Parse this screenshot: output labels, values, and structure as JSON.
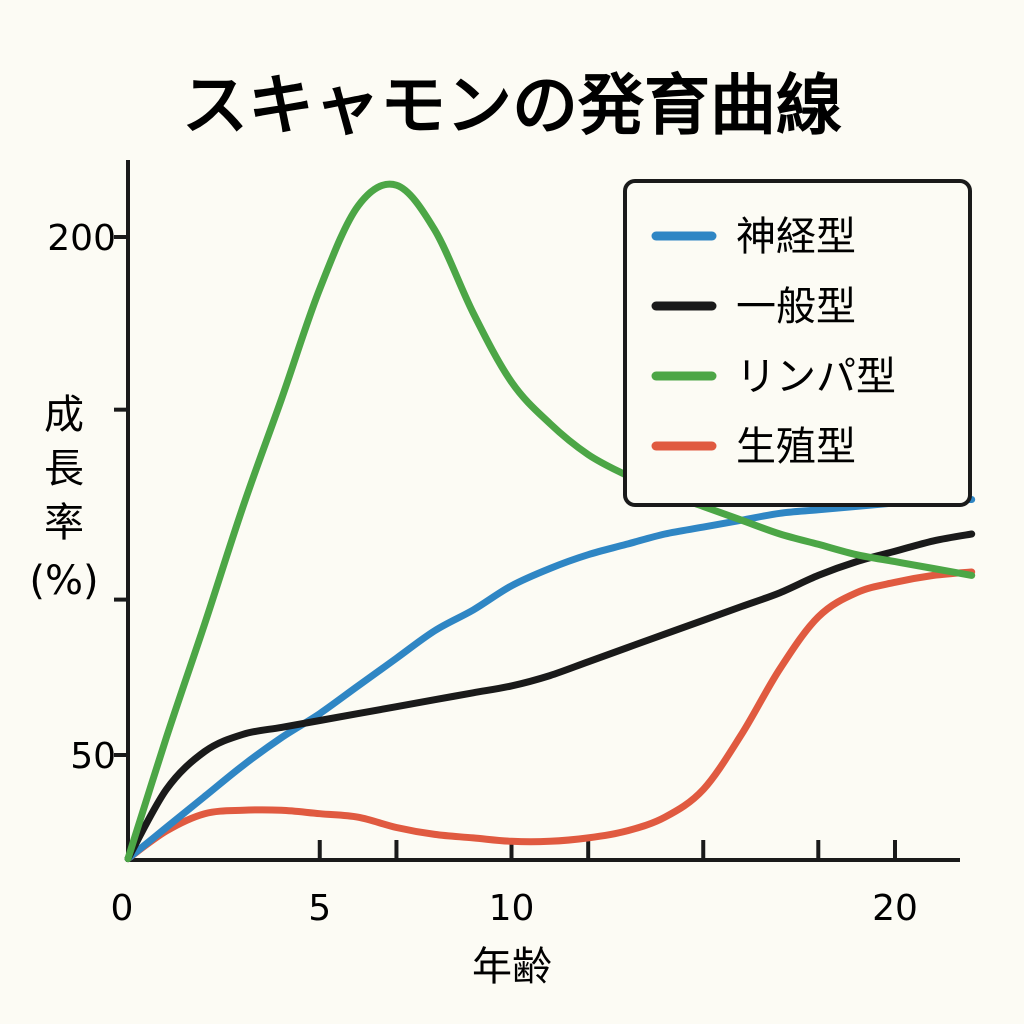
{
  "chart_data": {
    "type": "line",
    "title": "スキャモンの発育曲線",
    "xlabel": "年齢",
    "ylabel_lines": [
      "成",
      "長",
      "率",
      "(%)"
    ],
    "xlim": [
      0,
      22
    ],
    "ylim": [
      17,
      217
    ],
    "x_ticks": [
      0,
      5,
      10,
      20
    ],
    "x_minor_ticks": [
      5,
      7,
      10,
      12,
      15,
      18,
      20
    ],
    "y_ticks": [
      50,
      200
    ],
    "y_minor_ticks": [
      50,
      95,
      150,
      200
    ],
    "legend_position": "top-right",
    "grid": false,
    "series": [
      {
        "name": "神経型",
        "color": "#2f86c4",
        "points": [
          [
            0,
            20
          ],
          [
            1,
            29
          ],
          [
            2,
            38
          ],
          [
            3,
            47
          ],
          [
            4,
            55
          ],
          [
            5,
            62
          ],
          [
            6,
            70
          ],
          [
            7,
            78
          ],
          [
            8,
            86
          ],
          [
            9,
            92
          ],
          [
            10,
            99
          ],
          [
            11,
            104
          ],
          [
            12,
            108
          ],
          [
            13,
            111
          ],
          [
            14,
            114
          ],
          [
            15,
            116
          ],
          [
            16,
            118
          ],
          [
            17,
            120
          ],
          [
            18,
            121
          ],
          [
            19,
            122
          ],
          [
            20,
            123
          ],
          [
            21,
            124
          ],
          [
            22,
            124
          ]
        ]
      },
      {
        "name": "一般型",
        "color": "#1a1a1a",
        "points": [
          [
            0,
            20
          ],
          [
            1,
            40
          ],
          [
            2,
            51
          ],
          [
            3,
            56
          ],
          [
            4,
            58
          ],
          [
            5,
            60
          ],
          [
            6,
            62
          ],
          [
            7,
            64
          ],
          [
            8,
            66
          ],
          [
            9,
            68
          ],
          [
            10,
            70
          ],
          [
            11,
            73
          ],
          [
            12,
            77
          ],
          [
            13,
            81
          ],
          [
            14,
            85
          ],
          [
            15,
            89
          ],
          [
            16,
            93
          ],
          [
            17,
            97
          ],
          [
            18,
            102
          ],
          [
            19,
            106
          ],
          [
            20,
            109
          ],
          [
            21,
            112
          ],
          [
            22,
            114
          ]
        ]
      },
      {
        "name": "リンパ型",
        "color": "#4ca646",
        "points": [
          [
            0,
            20
          ],
          [
            1,
            55
          ],
          [
            2,
            88
          ],
          [
            3,
            122
          ],
          [
            4,
            153
          ],
          [
            5,
            185
          ],
          [
            6,
            209
          ],
          [
            7,
            215
          ],
          [
            8,
            202
          ],
          [
            9,
            178
          ],
          [
            10,
            158
          ],
          [
            11,
            146
          ],
          [
            12,
            137
          ],
          [
            13,
            131
          ],
          [
            14,
            126
          ],
          [
            15,
            122
          ],
          [
            16,
            118
          ],
          [
            17,
            114
          ],
          [
            18,
            111
          ],
          [
            19,
            108
          ],
          [
            20,
            106
          ],
          [
            21,
            104
          ],
          [
            22,
            102
          ]
        ]
      },
      {
        "name": "生殖型",
        "color": "#e05a40",
        "points": [
          [
            0,
            20
          ],
          [
            1,
            28
          ],
          [
            2,
            33
          ],
          [
            3,
            34
          ],
          [
            4,
            34
          ],
          [
            5,
            33
          ],
          [
            6,
            32
          ],
          [
            7,
            29
          ],
          [
            8,
            27
          ],
          [
            9,
            26
          ],
          [
            10,
            25
          ],
          [
            11,
            25
          ],
          [
            12,
            26
          ],
          [
            13,
            28
          ],
          [
            14,
            32
          ],
          [
            15,
            40
          ],
          [
            16,
            56
          ],
          [
            17,
            75
          ],
          [
            18,
            90
          ],
          [
            19,
            97
          ],
          [
            20,
            100
          ],
          [
            21,
            102
          ],
          [
            22,
            103
          ]
        ]
      }
    ]
  }
}
